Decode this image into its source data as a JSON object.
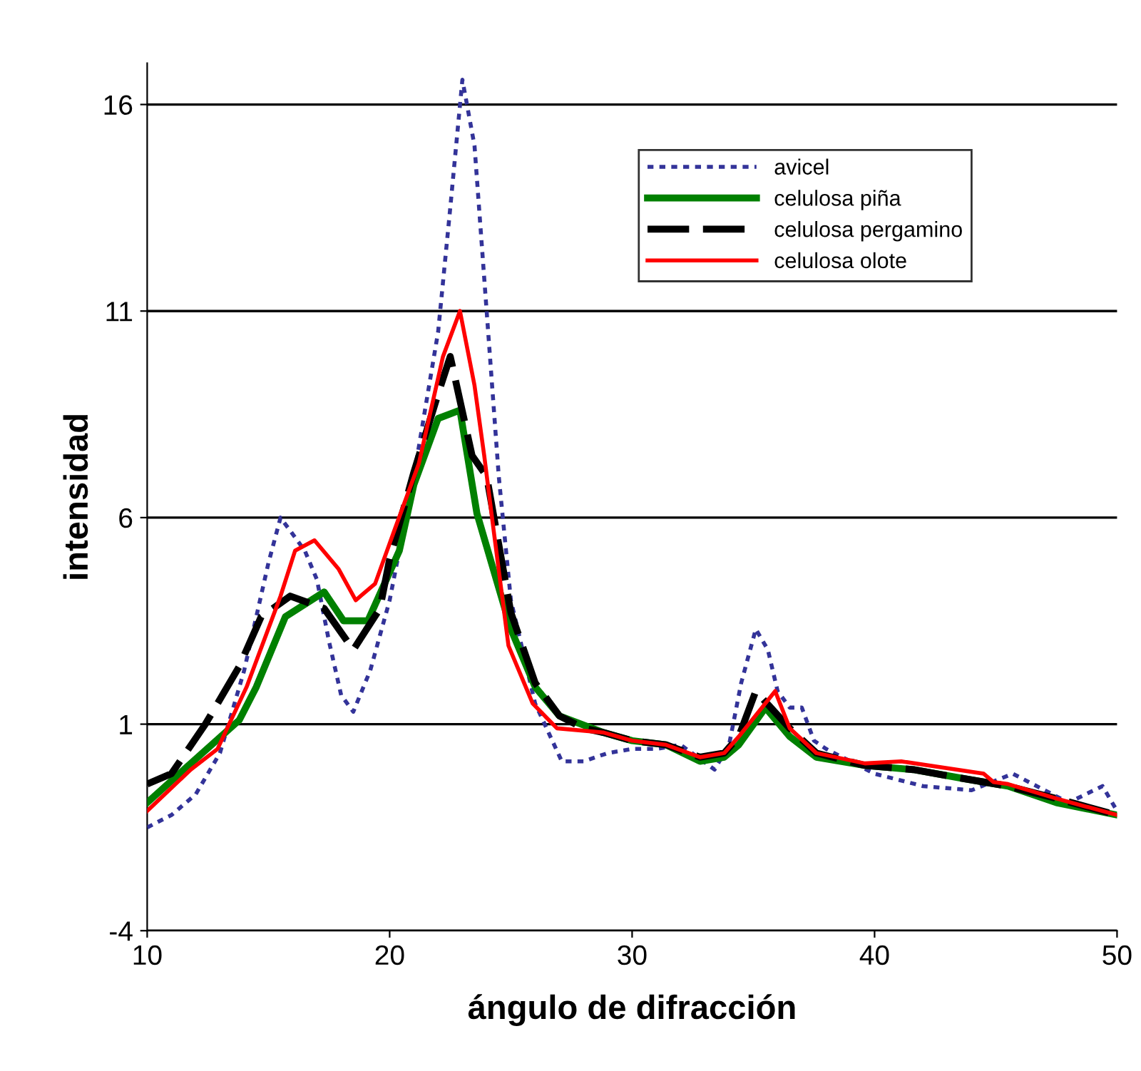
{
  "chart_data": {
    "type": "line",
    "xlabel": "ángulo de difracción",
    "ylabel": "intensidad",
    "xlim": [
      10,
      50
    ],
    "ylim": [
      -4,
      17
    ],
    "xticks": [
      10,
      20,
      30,
      40,
      50
    ],
    "yticks": [
      -4,
      1,
      6,
      11,
      16
    ],
    "grid": "y",
    "legend": "top right",
    "marker": "none",
    "series": [
      {
        "name": "avicel",
        "color": "#333399",
        "line_style": "dotted",
        "x": [
          10,
          11,
          12,
          13,
          14,
          15,
          15.5,
          16.5,
          17,
          17.5,
          18,
          18.5,
          19.2,
          20,
          21,
          22,
          22.5,
          23,
          23.5,
          24,
          24.5,
          25,
          26,
          27.1,
          28,
          29,
          30,
          31,
          32,
          33.4,
          34,
          34.5,
          35.1,
          35.6,
          36,
          36.5,
          37,
          37.5,
          38,
          40,
          42,
          44,
          45.7,
          48,
          49.4,
          50
        ],
        "values": [
          -1.5,
          -1.2,
          -0.7,
          0.3,
          2.3,
          4.9,
          6.0,
          5.2,
          4.5,
          3.0,
          1.7,
          1.3,
          2.3,
          4.0,
          7.0,
          10.5,
          13.5,
          16.6,
          15.0,
          11.0,
          7.0,
          4.0,
          1.5,
          0.1,
          0.1,
          0.3,
          0.4,
          0.4,
          0.5,
          -0.1,
          0.5,
          2.0,
          3.3,
          2.8,
          1.8,
          1.4,
          1.4,
          0.6,
          0.4,
          -0.2,
          -0.5,
          -0.6,
          -0.2,
          -0.9,
          -0.5,
          -1.1
        ]
      },
      {
        "name": "celulosa piña",
        "color": "#008000",
        "line_style": "solid",
        "x": [
          10,
          11.8,
          13.8,
          14.5,
          15.7,
          17.3,
          18.1,
          19.1,
          20.4,
          21,
          22,
          22.9,
          23.6,
          24.5,
          25,
          26,
          27,
          28.8,
          30,
          31.4,
          32.8,
          33.8,
          34.4,
          35.5,
          36.5,
          37.6,
          39.6,
          41.6,
          43.5,
          45.5,
          47.5,
          50
        ],
        "values": [
          -0.9,
          0.05,
          1.1,
          1.9,
          3.6,
          4.2,
          3.5,
          3.5,
          5.2,
          6.8,
          8.4,
          8.6,
          6.1,
          4.3,
          3.3,
          1.9,
          1.2,
          0.8,
          0.6,
          0.5,
          0.1,
          0.2,
          0.5,
          1.4,
          0.7,
          0.2,
          0.0,
          -0.1,
          -0.3,
          -0.5,
          -0.9,
          -1.2
        ]
      },
      {
        "name": "celulosa pergamino",
        "color": "#000000",
        "line_style": "dashed",
        "x": [
          10,
          11,
          12.4,
          13.8,
          14.7,
          15.9,
          17.3,
          18.5,
          19.6,
          20,
          21,
          22,
          22.5,
          23.4,
          24,
          25,
          26,
          27,
          28,
          28.8,
          30,
          31.4,
          32.8,
          33.8,
          34.4,
          35.1,
          36.5,
          37.6,
          39.6,
          41.6,
          43.5,
          45.5,
          47.5,
          50
        ],
        "values": [
          -0.45,
          -0.2,
          1.0,
          2.4,
          3.6,
          4.1,
          3.8,
          2.8,
          3.8,
          5.0,
          7.1,
          9.0,
          9.9,
          7.5,
          7.0,
          3.7,
          2.0,
          1.2,
          0.9,
          0.8,
          0.6,
          0.5,
          0.2,
          0.3,
          0.7,
          1.8,
          0.9,
          0.3,
          0.0,
          -0.1,
          -0.3,
          -0.5,
          -0.8,
          -1.2
        ]
      },
      {
        "name": "celulosa olote",
        "color": "#ff0000",
        "line_style": "solid",
        "x": [
          10,
          11.8,
          12.9,
          14.1,
          15.5,
          16.1,
          16.9,
          17.9,
          18.6,
          19.4,
          20.2,
          21.2,
          22.2,
          22.9,
          23.5,
          23.9,
          24.2,
          24.9,
          25.9,
          26.9,
          28.8,
          30,
          31.4,
          32.8,
          33.8,
          34.4,
          35.9,
          36.5,
          37.6,
          39.6,
          41.1,
          44.5,
          44.9,
          45.5,
          47.5,
          50
        ],
        "values": [
          -1.1,
          -0.1,
          0.4,
          1.9,
          4.1,
          5.2,
          5.45,
          4.75,
          4.0,
          4.4,
          5.7,
          7.3,
          9.9,
          11.0,
          9.2,
          7.5,
          6.1,
          2.9,
          1.5,
          0.9,
          0.8,
          0.6,
          0.5,
          0.2,
          0.3,
          0.7,
          1.8,
          0.9,
          0.3,
          0.05,
          0.1,
          -0.2,
          -0.4,
          -0.45,
          -0.8,
          -1.2
        ]
      }
    ]
  }
}
